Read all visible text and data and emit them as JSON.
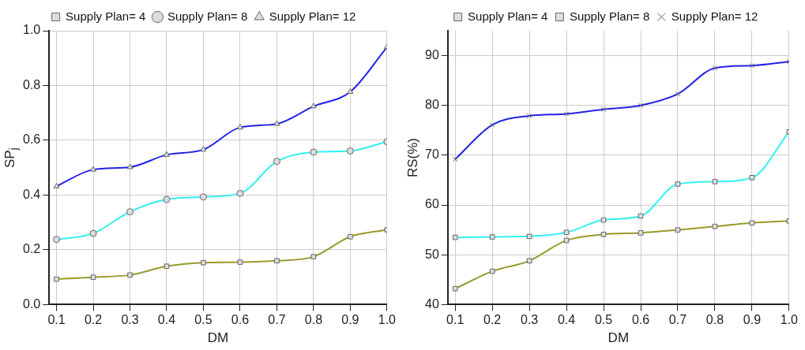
{
  "chart_data": [
    {
      "type": "line",
      "xlabel": "DM",
      "ylabel": "SP$_{j}$",
      "x": [
        0.1,
        0.2,
        0.3,
        0.4,
        0.5,
        0.6,
        0.7,
        0.8,
        0.9,
        1.0
      ],
      "xlim": [
        0.08,
        1.0
      ],
      "xticks": [
        0.1,
        0.2,
        0.3,
        0.4,
        0.5,
        0.6,
        0.7,
        0.8,
        0.9,
        {
          "value": 1.0,
          "label": "1.0"
        }
      ],
      "ylim": [
        0,
        1.0
      ],
      "yticks": [
        {
          "value": 0,
          "label": "0.0"
        },
        0.2,
        0.4,
        0.6,
        0.8,
        {
          "value": 1.0,
          "label": "1.0"
        }
      ],
      "grid": true,
      "legend": "top",
      "series": [
        {
          "name": "Supply Plan= 4",
          "color": "#9a9a2a",
          "marker": "square",
          "values": [
            0.093,
            0.1,
            0.108,
            0.14,
            0.153,
            0.155,
            0.16,
            0.175,
            0.248,
            0.273
          ]
        },
        {
          "name": "Supply Plan= 8",
          "color": "#33f0f0",
          "marker": "circle",
          "values": [
            0.238,
            0.26,
            0.339,
            0.384,
            0.393,
            0.406,
            0.523,
            0.557,
            0.561,
            0.595
          ]
        },
        {
          "name": "Supply Plan= 12",
          "color": "#2222e6",
          "marker": "triangle",
          "values": [
            0.432,
            0.493,
            0.502,
            0.547,
            0.566,
            0.647,
            0.66,
            0.724,
            0.777,
            0.94
          ]
        }
      ]
    },
    {
      "type": "line",
      "xlabel": "DM",
      "ylabel": "RS(%)",
      "x": [
        0.1,
        0.2,
        0.3,
        0.4,
        0.5,
        0.6,
        0.7,
        0.8,
        0.9,
        1.0
      ],
      "xlim": [
        0.08,
        1.0
      ],
      "xticks": [
        0.1,
        0.2,
        0.3,
        0.4,
        0.5,
        0.6,
        0.7,
        0.8,
        0.9,
        {
          "value": 1.0,
          "label": "1.0"
        }
      ],
      "ylim": [
        40,
        95
      ],
      "yticks": [
        40,
        50,
        60,
        70,
        80,
        90
      ],
      "grid": true,
      "legend": "top",
      "series": [
        {
          "name": "Supply Plan= 4",
          "color": "#9a9a2a",
          "marker": "square",
          "values": [
            43.2,
            46.7,
            48.8,
            52.9,
            54.1,
            54.4,
            55.0,
            55.7,
            56.4,
            56.8
          ]
        },
        {
          "name": "Supply Plan= 8",
          "color": "#33f0f0",
          "marker": "square",
          "values": [
            53.5,
            53.6,
            53.7,
            54.5,
            57.0,
            57.8,
            64.2,
            64.7,
            65.5,
            74.7
          ]
        },
        {
          "name": "Supply Plan= 12",
          "color": "#2222e6",
          "marker": "cross",
          "values": [
            69.2,
            76.1,
            77.9,
            78.3,
            79.2,
            80.0,
            82.3,
            87.5,
            88.0,
            88.8
          ]
        }
      ]
    }
  ]
}
